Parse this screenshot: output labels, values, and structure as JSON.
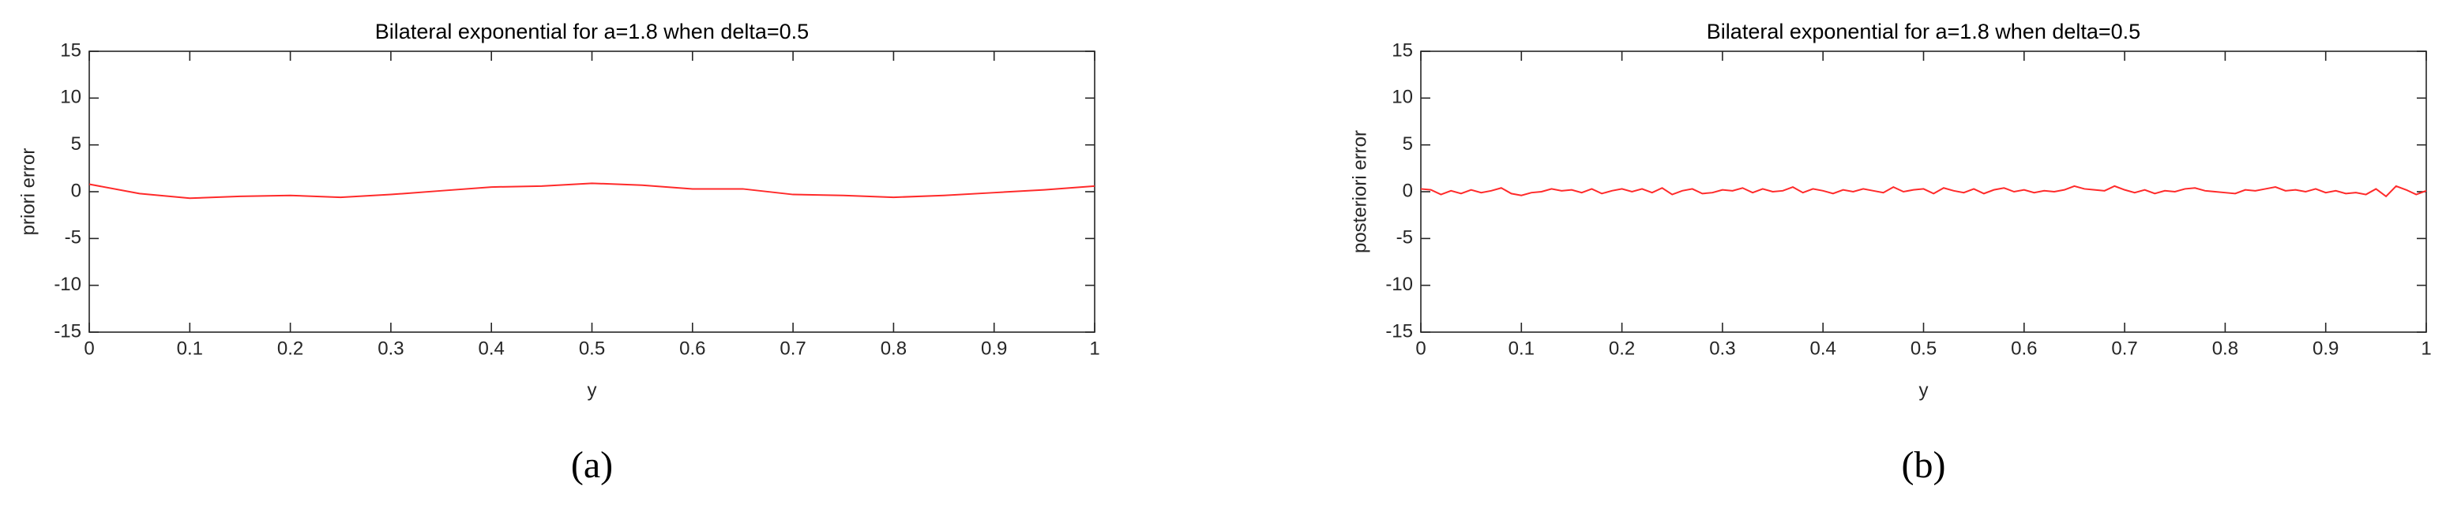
{
  "chart_data": [
    {
      "type": "line",
      "title": "Bilateral exponential for a=1.8 when delta=0.5",
      "xlabel": "y",
      "ylabel": "priori error",
      "caption": "(a)",
      "x": [
        0,
        0.05,
        0.1,
        0.15,
        0.2,
        0.25,
        0.3,
        0.35,
        0.4,
        0.45,
        0.5,
        0.55,
        0.6,
        0.65,
        0.7,
        0.75,
        0.8,
        0.85,
        0.9,
        0.95,
        1
      ],
      "series": [
        {
          "color": "#ff2a2a",
          "values": [
            0.8,
            -0.2,
            -0.7,
            -0.5,
            -0.4,
            -0.6,
            -0.3,
            0.1,
            0.5,
            0.6,
            0.9,
            0.7,
            0.3,
            0.3,
            -0.3,
            -0.4,
            -0.6,
            -0.4,
            -0.1,
            0.2,
            0.6
          ]
        }
      ],
      "xlim": [
        0,
        1
      ],
      "xticks": [
        0,
        0.1,
        0.2,
        0.3,
        0.4,
        0.5,
        0.6,
        0.7,
        0.8,
        0.9,
        1
      ],
      "ylim": [
        -15,
        15
      ],
      "yticks": [
        -15,
        -10,
        -5,
        0,
        5,
        10,
        15
      ]
    },
    {
      "type": "line",
      "title": "Bilateral exponential for a=1.8 when delta=0.5",
      "xlabel": "y",
      "ylabel": "posteriori error",
      "caption": "(b)",
      "x": [
        0,
        0.01,
        0.02,
        0.03,
        0.04,
        0.05,
        0.06,
        0.07,
        0.08,
        0.09,
        0.1,
        0.11,
        0.12,
        0.13,
        0.14,
        0.15,
        0.16,
        0.17,
        0.18,
        0.19,
        0.2,
        0.21,
        0.22,
        0.23,
        0.24,
        0.25,
        0.26,
        0.27,
        0.28,
        0.29,
        0.3,
        0.31,
        0.32,
        0.33,
        0.34,
        0.35,
        0.36,
        0.37,
        0.38,
        0.39,
        0.4,
        0.41,
        0.42,
        0.43,
        0.44,
        0.45,
        0.46,
        0.47,
        0.48,
        0.49,
        0.5,
        0.51,
        0.52,
        0.53,
        0.54,
        0.55,
        0.56,
        0.57,
        0.58,
        0.59,
        0.6,
        0.61,
        0.62,
        0.63,
        0.64,
        0.65,
        0.66,
        0.67,
        0.68,
        0.69,
        0.7,
        0.71,
        0.72,
        0.73,
        0.74,
        0.75,
        0.76,
        0.77,
        0.78,
        0.79,
        0.8,
        0.81,
        0.82,
        0.83,
        0.84,
        0.85,
        0.86,
        0.87,
        0.88,
        0.89,
        0.9,
        0.91,
        0.92,
        0.93,
        0.94,
        0.95,
        0.96,
        0.97,
        0.98,
        0.99,
        1
      ],
      "series": [
        {
          "color": "#ff2a2a",
          "values": [
            0.3,
            0.2,
            -0.3,
            0.1,
            -0.2,
            0.2,
            -0.1,
            0.1,
            0.4,
            -0.2,
            -0.4,
            -0.1,
            0.0,
            0.3,
            0.1,
            0.2,
            -0.1,
            0.3,
            -0.2,
            0.1,
            0.3,
            0.0,
            0.3,
            -0.1,
            0.4,
            -0.3,
            0.1,
            0.3,
            -0.2,
            -0.1,
            0.2,
            0.1,
            0.4,
            -0.1,
            0.3,
            0.0,
            0.1,
            0.5,
            -0.1,
            0.3,
            0.1,
            -0.2,
            0.2,
            0.0,
            0.3,
            0.1,
            -0.1,
            0.5,
            0.0,
            0.2,
            0.3,
            -0.2,
            0.4,
            0.1,
            -0.1,
            0.3,
            -0.2,
            0.2,
            0.4,
            0.0,
            0.2,
            -0.1,
            0.1,
            0.0,
            0.2,
            0.6,
            0.3,
            0.2,
            0.1,
            0.6,
            0.2,
            -0.1,
            0.2,
            -0.2,
            0.1,
            0.0,
            0.3,
            0.4,
            0.1,
            0.0,
            -0.1,
            -0.2,
            0.2,
            0.1,
            0.3,
            0.5,
            0.1,
            0.2,
            0.0,
            0.3,
            -0.1,
            0.1,
            -0.2,
            -0.1,
            -0.3,
            0.3,
            -0.5,
            0.6,
            0.2,
            -0.3,
            0.1
          ]
        }
      ],
      "xlim": [
        0,
        1
      ],
      "xticks": [
        0,
        0.1,
        0.2,
        0.3,
        0.4,
        0.5,
        0.6,
        0.7,
        0.8,
        0.9,
        1
      ],
      "ylim": [
        -15,
        15
      ],
      "yticks": [
        -15,
        -10,
        -5,
        0,
        5,
        10,
        15
      ]
    }
  ]
}
